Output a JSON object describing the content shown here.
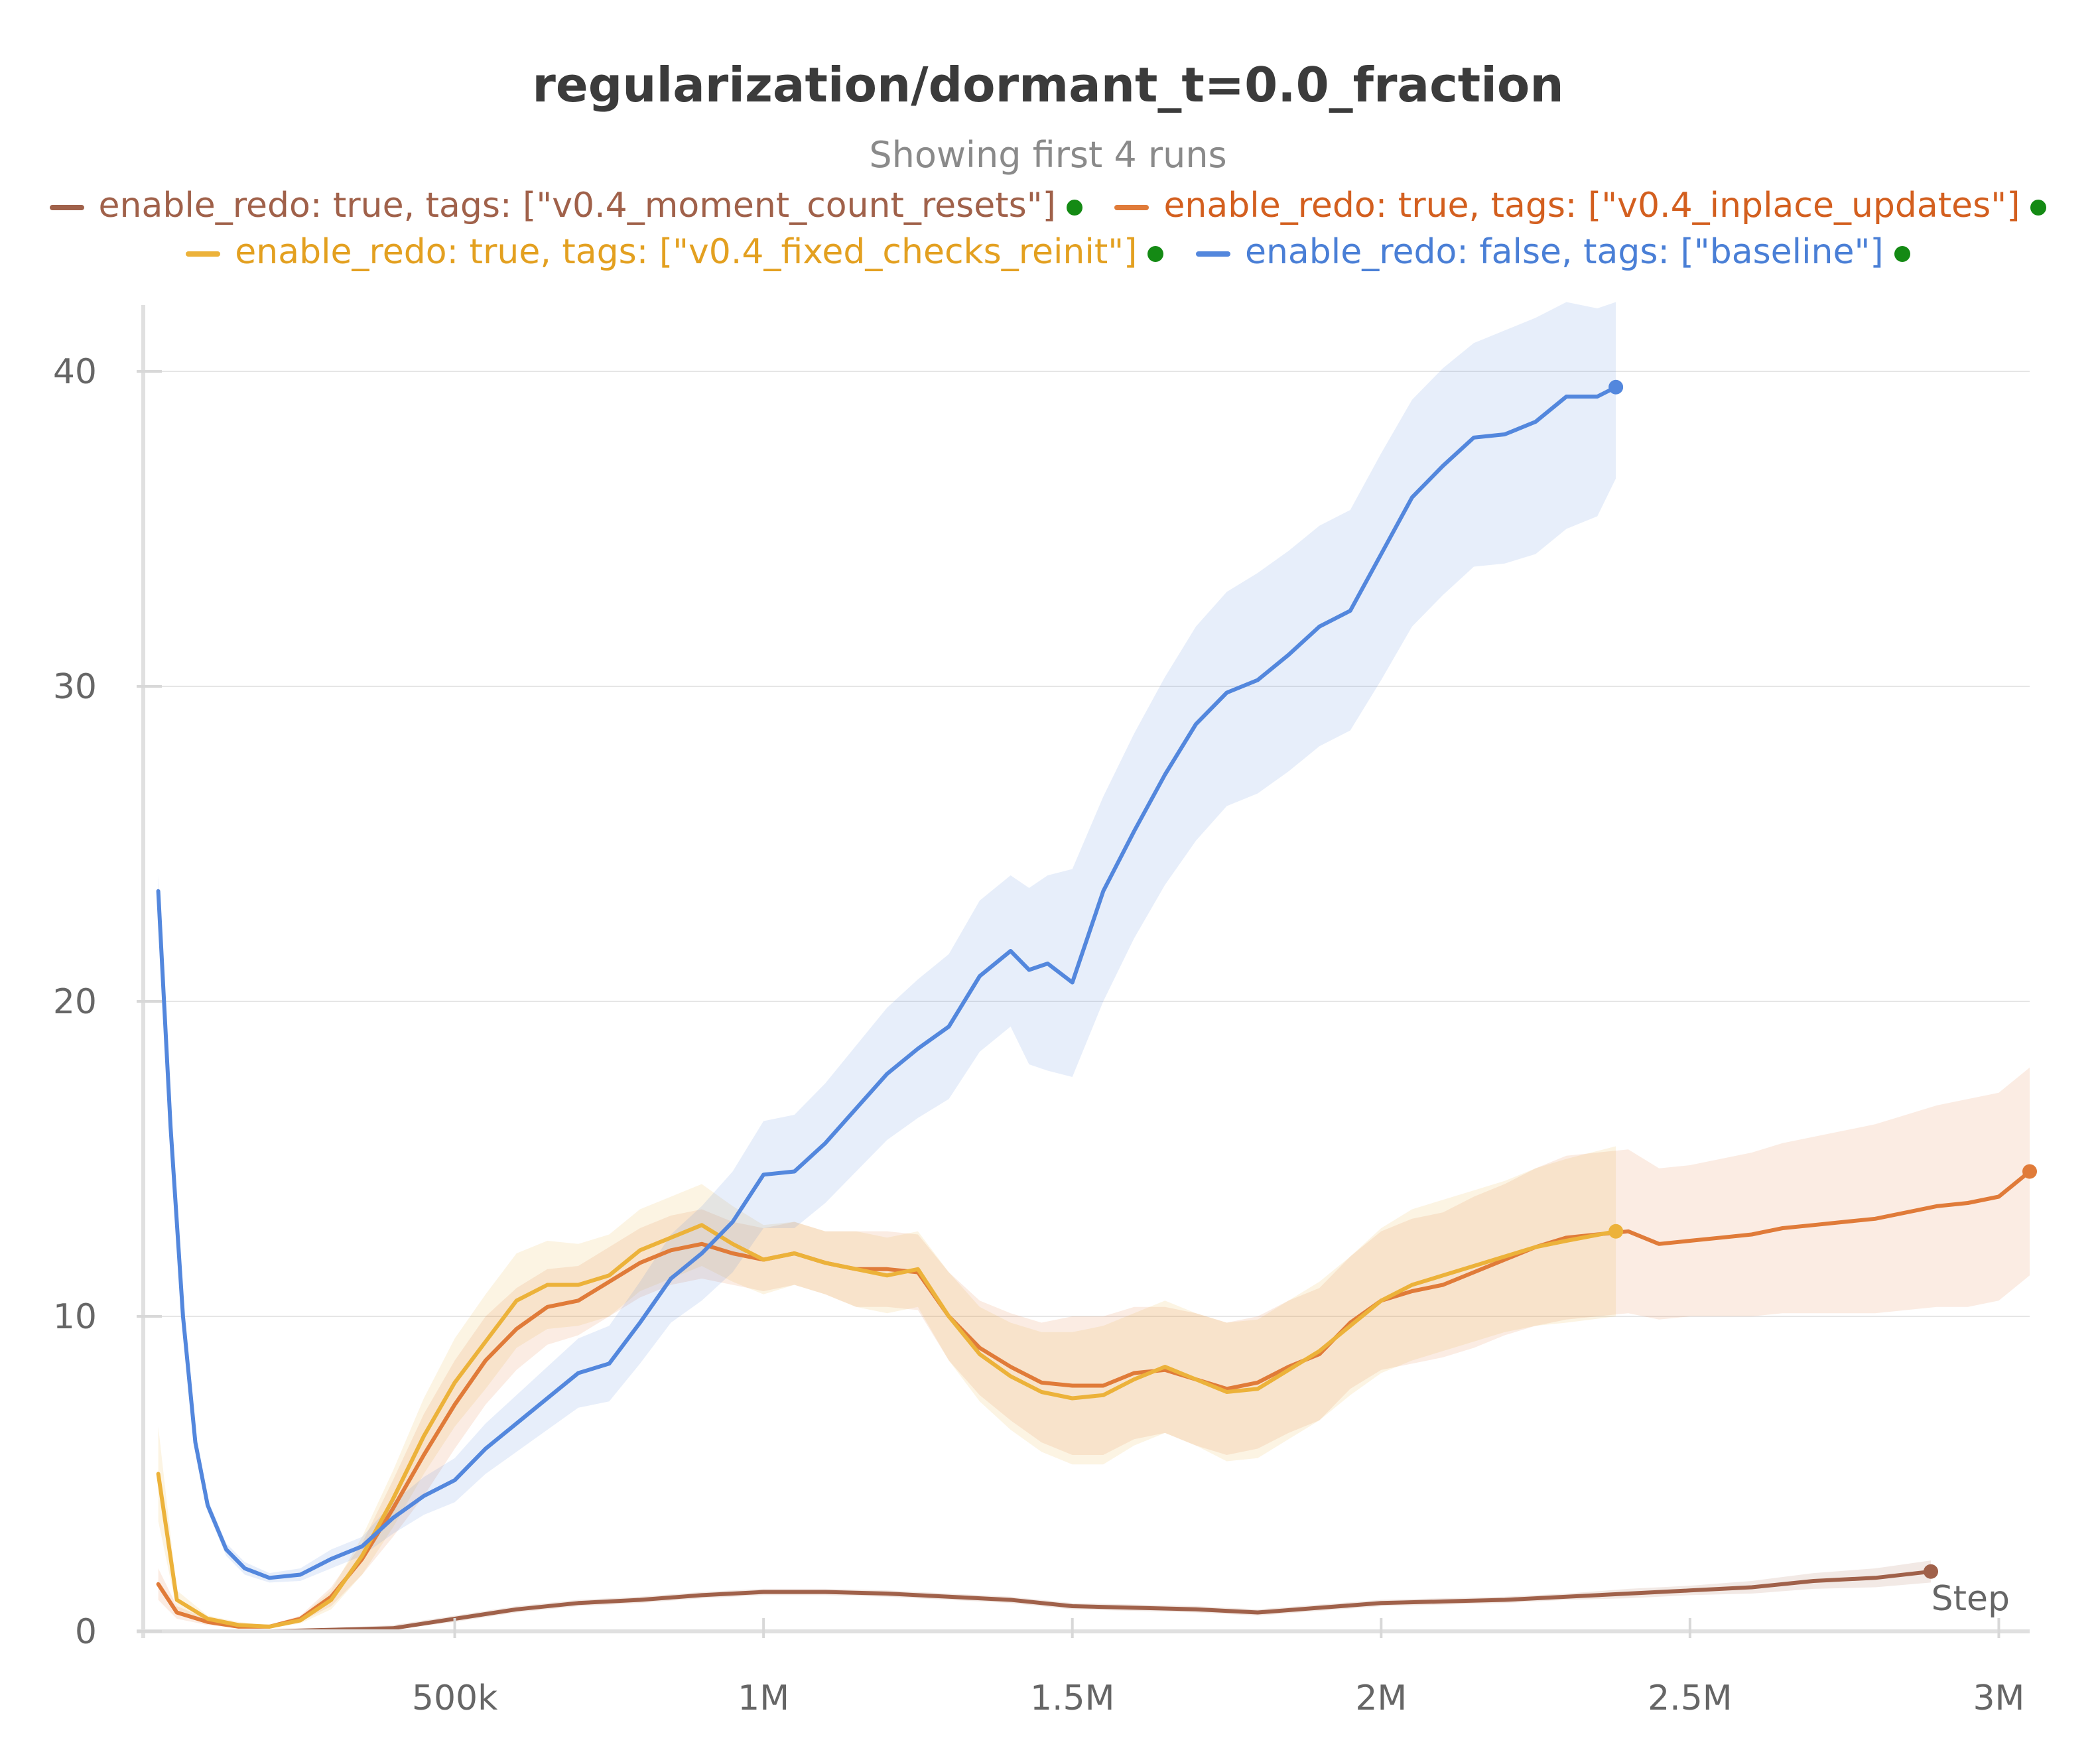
{
  "chart_data": {
    "type": "line",
    "title": "regularization/dormant_t=0.0_fraction",
    "subtitle": "Showing first 4 runs",
    "xlabel": "Step",
    "ylabel": "",
    "xlim": [
      0,
      3050000
    ],
    "ylim": [
      0,
      42
    ],
    "x_ticks": [
      500000,
      1000000,
      1500000,
      2000000,
      2500000,
      3000000
    ],
    "x_tick_labels": [
      "500k",
      "1M",
      "1.5M",
      "2M",
      "2.5M",
      "3M"
    ],
    "y_ticks": [
      0,
      10,
      20,
      30,
      40
    ],
    "y_tick_labels": [
      "0",
      "10",
      "20",
      "30",
      "40"
    ],
    "grid": true,
    "legend_position": "top",
    "series": [
      {
        "name": "enable_redo: true, tags: [\"v0.4_moment_count_resets\"]",
        "color": "#a0614a",
        "x": [
          20000,
          100000,
          200000,
          300000,
          400000,
          500000,
          600000,
          700000,
          800000,
          900000,
          1000000,
          1100000,
          1200000,
          1300000,
          1400000,
          1500000,
          1600000,
          1700000,
          1800000,
          1900000,
          2000000,
          2100000,
          2200000,
          2300000,
          2400000,
          2500000,
          2600000,
          2700000,
          2800000,
          2890000
        ],
        "y": [
          0.0,
          0.0,
          0.0,
          0.05,
          0.1,
          0.4,
          0.7,
          0.9,
          1.0,
          1.15,
          1.25,
          1.25,
          1.2,
          1.1,
          1.0,
          0.8,
          0.75,
          0.7,
          0.6,
          0.75,
          0.9,
          0.95,
          1.0,
          1.1,
          1.2,
          1.3,
          1.4,
          1.6,
          1.7,
          1.9
        ],
        "band": [
          [
            0.0,
            0.0
          ],
          [
            0.0,
            0.0
          ],
          [
            0.0,
            0.0
          ],
          [
            0.0,
            0.1
          ],
          [
            0.05,
            0.2
          ],
          [
            0.3,
            0.5
          ],
          [
            0.6,
            0.8
          ],
          [
            0.8,
            1.0
          ],
          [
            0.9,
            1.1
          ],
          [
            1.05,
            1.25
          ],
          [
            1.15,
            1.35
          ],
          [
            1.15,
            1.35
          ],
          [
            1.1,
            1.3
          ],
          [
            1.0,
            1.2
          ],
          [
            0.9,
            1.1
          ],
          [
            0.7,
            0.9
          ],
          [
            0.65,
            0.85
          ],
          [
            0.6,
            0.8
          ],
          [
            0.5,
            0.7
          ],
          [
            0.65,
            0.85
          ],
          [
            0.8,
            1.0
          ],
          [
            0.85,
            1.05
          ],
          [
            0.9,
            1.1
          ],
          [
            1.0,
            1.2
          ],
          [
            1.05,
            1.35
          ],
          [
            1.15,
            1.45
          ],
          [
            1.2,
            1.6
          ],
          [
            1.35,
            1.85
          ],
          [
            1.4,
            2.0
          ],
          [
            1.55,
            2.25
          ]
        ]
      },
      {
        "name": "enable_redo: true, tags: [\"v0.4_inplace_updates\"]",
        "color": "#e07b39",
        "x": [
          20000,
          50000,
          100000,
          150000,
          200000,
          250000,
          300000,
          350000,
          400000,
          450000,
          500000,
          550000,
          600000,
          650000,
          700000,
          750000,
          800000,
          850000,
          900000,
          950000,
          1000000,
          1050000,
          1100000,
          1150000,
          1200000,
          1250000,
          1300000,
          1350000,
          1400000,
          1450000,
          1500000,
          1550000,
          1600000,
          1650000,
          1700000,
          1750000,
          1800000,
          1850000,
          1900000,
          1950000,
          2000000,
          2050000,
          2100000,
          2150000,
          2200000,
          2250000,
          2300000,
          2350000,
          2400000,
          2450000,
          2500000,
          2550000,
          2600000,
          2650000,
          2700000,
          2750000,
          2800000,
          2850000,
          2900000,
          2950000,
          3000000,
          3050000
        ],
        "y": [
          1.5,
          0.6,
          0.3,
          0.15,
          0.15,
          0.4,
          1.1,
          2.3,
          3.9,
          5.6,
          7.2,
          8.6,
          9.6,
          10.3,
          10.5,
          11.1,
          11.7,
          12.1,
          12.3,
          12.0,
          11.8,
          12.0,
          11.7,
          11.5,
          11.5,
          11.4,
          10.0,
          9.0,
          8.4,
          7.9,
          7.8,
          7.8,
          8.2,
          8.3,
          8.0,
          7.7,
          7.9,
          8.4,
          8.8,
          9.8,
          10.5,
          10.8,
          11.0,
          11.4,
          11.8,
          12.2,
          12.5,
          12.6,
          12.7,
          12.3,
          12.4,
          12.5,
          12.6,
          12.8,
          12.9,
          13.0,
          13.1,
          13.3,
          13.5,
          13.6,
          13.8,
          14.6
        ],
        "band": [
          [
            1.0,
            2.0
          ],
          [
            0.4,
            0.8
          ],
          [
            0.2,
            0.4
          ],
          [
            0.1,
            0.2
          ],
          [
            0.1,
            0.2
          ],
          [
            0.3,
            0.5
          ],
          [
            0.8,
            1.4
          ],
          [
            1.8,
            2.8
          ],
          [
            3.0,
            4.8
          ],
          [
            4.3,
            6.9
          ],
          [
            5.8,
            8.6
          ],
          [
            7.2,
            10.0
          ],
          [
            8.3,
            10.9
          ],
          [
            9.1,
            11.5
          ],
          [
            9.4,
            11.6
          ],
          [
            10.0,
            12.2
          ],
          [
            10.6,
            12.8
          ],
          [
            11.0,
            13.2
          ],
          [
            11.2,
            13.4
          ],
          [
            11.0,
            13.0
          ],
          [
            10.8,
            12.8
          ],
          [
            11.0,
            13.0
          ],
          [
            10.7,
            12.7
          ],
          [
            10.3,
            12.7
          ],
          [
            10.3,
            12.7
          ],
          [
            10.2,
            12.6
          ],
          [
            8.6,
            11.4
          ],
          [
            7.5,
            10.5
          ],
          [
            6.7,
            10.1
          ],
          [
            6.0,
            9.8
          ],
          [
            5.6,
            10.0
          ],
          [
            5.6,
            10.0
          ],
          [
            6.1,
            10.3
          ],
          [
            6.3,
            10.3
          ],
          [
            5.9,
            10.1
          ],
          [
            5.6,
            9.8
          ],
          [
            5.8,
            10.0
          ],
          [
            6.3,
            10.5
          ],
          [
            6.7,
            10.9
          ],
          [
            7.7,
            11.9
          ],
          [
            8.3,
            12.7
          ],
          [
            8.5,
            13.1
          ],
          [
            8.7,
            13.3
          ],
          [
            9.0,
            13.8
          ],
          [
            9.4,
            14.2
          ],
          [
            9.7,
            14.7
          ],
          [
            9.9,
            15.1
          ],
          [
            10.0,
            15.2
          ],
          [
            10.1,
            15.3
          ],
          [
            9.9,
            14.7
          ],
          [
            10.0,
            14.8
          ],
          [
            10.0,
            15.0
          ],
          [
            10.0,
            15.2
          ],
          [
            10.1,
            15.5
          ],
          [
            10.1,
            15.7
          ],
          [
            10.1,
            15.9
          ],
          [
            10.1,
            16.1
          ],
          [
            10.2,
            16.4
          ],
          [
            10.3,
            16.7
          ],
          [
            10.3,
            16.9
          ],
          [
            10.5,
            17.1
          ],
          [
            11.3,
            17.9
          ]
        ]
      },
      {
        "name": "enable_redo: true, tags: [\"v0.4_fixed_checks_reinit\"]",
        "color": "#ecb23a",
        "x": [
          20000,
          50000,
          100000,
          150000,
          200000,
          250000,
          300000,
          350000,
          400000,
          450000,
          500000,
          550000,
          600000,
          650000,
          700000,
          750000,
          800000,
          850000,
          900000,
          950000,
          1000000,
          1050000,
          1100000,
          1150000,
          1200000,
          1250000,
          1300000,
          1350000,
          1400000,
          1450000,
          1500000,
          1550000,
          1600000,
          1650000,
          1700000,
          1750000,
          1800000,
          1850000,
          1900000,
          1950000,
          2000000,
          2050000,
          2100000,
          2150000,
          2200000,
          2250000,
          2300000,
          2380000
        ],
        "y": [
          5.0,
          1.0,
          0.4,
          0.2,
          0.15,
          0.35,
          1.0,
          2.4,
          4.2,
          6.2,
          7.9,
          9.2,
          10.5,
          11.0,
          11.0,
          11.3,
          12.1,
          12.5,
          12.9,
          12.3,
          11.8,
          12.0,
          11.7,
          11.5,
          11.3,
          11.5,
          10.0,
          8.8,
          8.1,
          7.6,
          7.4,
          7.5,
          8.0,
          8.4,
          8.0,
          7.6,
          7.7,
          8.3,
          8.9,
          9.7,
          10.5,
          11.0,
          11.3,
          11.6,
          11.9,
          12.2,
          12.4,
          12.7
        ],
        "band": [
          [
            3.5,
            6.5
          ],
          [
            0.7,
            1.3
          ],
          [
            0.3,
            0.5
          ],
          [
            0.1,
            0.3
          ],
          [
            0.1,
            0.2
          ],
          [
            0.25,
            0.45
          ],
          [
            0.7,
            1.3
          ],
          [
            1.8,
            3.0
          ],
          [
            3.3,
            5.1
          ],
          [
            5.0,
            7.4
          ],
          [
            6.5,
            9.3
          ],
          [
            7.7,
            10.7
          ],
          [
            9.0,
            12.0
          ],
          [
            9.6,
            12.4
          ],
          [
            9.7,
            12.3
          ],
          [
            10.0,
            12.6
          ],
          [
            10.8,
            13.4
          ],
          [
            11.2,
            13.8
          ],
          [
            11.6,
            14.2
          ],
          [
            11.1,
            13.5
          ],
          [
            10.7,
            12.9
          ],
          [
            11.0,
            13.0
          ],
          [
            10.7,
            12.7
          ],
          [
            10.3,
            12.7
          ],
          [
            10.1,
            12.5
          ],
          [
            10.3,
            12.7
          ],
          [
            8.6,
            11.4
          ],
          [
            7.3,
            10.3
          ],
          [
            6.4,
            9.8
          ],
          [
            5.7,
            9.5
          ],
          [
            5.3,
            9.5
          ],
          [
            5.3,
            9.7
          ],
          [
            5.9,
            10.1
          ],
          [
            6.3,
            10.5
          ],
          [
            5.9,
            10.1
          ],
          [
            5.4,
            9.8
          ],
          [
            5.5,
            9.9
          ],
          [
            6.1,
            10.5
          ],
          [
            6.7,
            11.1
          ],
          [
            7.5,
            11.9
          ],
          [
            8.2,
            12.8
          ],
          [
            8.6,
            13.4
          ],
          [
            8.9,
            13.7
          ],
          [
            9.2,
            14.0
          ],
          [
            9.5,
            14.3
          ],
          [
            9.7,
            14.7
          ],
          [
            9.8,
            15.0
          ],
          [
            10.0,
            15.4
          ]
        ]
      },
      {
        "name": "enable_redo: false, tags: [\"baseline\"]",
        "color": "#5387dd",
        "x": [
          20000,
          40000,
          60000,
          80000,
          100000,
          130000,
          160000,
          200000,
          250000,
          300000,
          350000,
          400000,
          450000,
          500000,
          550000,
          600000,
          650000,
          700000,
          750000,
          800000,
          850000,
          900000,
          950000,
          1000000,
          1050000,
          1100000,
          1150000,
          1200000,
          1250000,
          1300000,
          1350000,
          1400000,
          1430000,
          1460000,
          1500000,
          1550000,
          1600000,
          1650000,
          1700000,
          1750000,
          1800000,
          1850000,
          1900000,
          1950000,
          2000000,
          2050000,
          2100000,
          2150000,
          2200000,
          2250000,
          2300000,
          2350000,
          2380000
        ],
        "y": [
          23.5,
          16.0,
          10.0,
          6.0,
          4.0,
          2.6,
          2.0,
          1.7,
          1.8,
          2.3,
          2.7,
          3.6,
          4.3,
          4.8,
          5.8,
          6.6,
          7.4,
          8.2,
          8.5,
          9.8,
          11.2,
          12.0,
          13.0,
          14.5,
          14.6,
          15.5,
          16.6,
          17.7,
          18.5,
          19.2,
          20.8,
          21.6,
          21.0,
          21.2,
          20.6,
          23.5,
          25.4,
          27.2,
          28.8,
          29.8,
          30.2,
          31.0,
          31.9,
          32.4,
          34.2,
          36.0,
          37.0,
          37.9,
          38.0,
          38.4,
          39.2,
          39.2,
          39.5
        ],
        "band": [
          [
            23.0,
            24.0
          ],
          [
            15.5,
            16.5
          ],
          [
            9.6,
            10.4
          ],
          [
            5.7,
            6.3
          ],
          [
            3.8,
            4.2
          ],
          [
            2.4,
            2.8
          ],
          [
            1.8,
            2.2
          ],
          [
            1.55,
            1.85
          ],
          [
            1.6,
            2.0
          ],
          [
            2.0,
            2.6
          ],
          [
            2.4,
            3.0
          ],
          [
            3.1,
            4.1
          ],
          [
            3.7,
            4.9
          ],
          [
            4.1,
            5.5
          ],
          [
            5.0,
            6.6
          ],
          [
            5.7,
            7.5
          ],
          [
            6.4,
            8.4
          ],
          [
            7.1,
            9.3
          ],
          [
            7.3,
            9.7
          ],
          [
            8.5,
            11.1
          ],
          [
            9.8,
            12.6
          ],
          [
            10.5,
            13.5
          ],
          [
            11.4,
            14.6
          ],
          [
            12.8,
            16.2
          ],
          [
            12.8,
            16.4
          ],
          [
            13.6,
            17.4
          ],
          [
            14.6,
            18.6
          ],
          [
            15.6,
            19.8
          ],
          [
            16.3,
            20.7
          ],
          [
            16.9,
            21.5
          ],
          [
            18.4,
            23.2
          ],
          [
            19.2,
            24.0
          ],
          [
            18.0,
            23.6
          ],
          [
            17.8,
            24.0
          ],
          [
            17.6,
            24.2
          ],
          [
            20.0,
            26.5
          ],
          [
            22.0,
            28.5
          ],
          [
            23.7,
            30.3
          ],
          [
            25.1,
            31.9
          ],
          [
            26.2,
            33.0
          ],
          [
            26.6,
            33.6
          ],
          [
            27.3,
            34.3
          ],
          [
            28.1,
            35.1
          ],
          [
            28.6,
            35.6
          ],
          [
            30.2,
            37.4
          ],
          [
            31.9,
            39.1
          ],
          [
            32.9,
            40.1
          ],
          [
            33.8,
            40.9
          ],
          [
            33.9,
            41.3
          ],
          [
            34.2,
            41.7
          ],
          [
            35.0,
            42.2
          ],
          [
            35.4,
            42.0
          ],
          [
            36.6,
            42.2
          ]
        ]
      }
    ]
  },
  "legend": {
    "row1": [
      {
        "label": "enable_redo: true, tags: [\"v0.4_moment_count_resets\"]",
        "color": "#a0614a"
      },
      {
        "label": "enable_redo: true, tags: [\"v0.4_inplace_updates\"]",
        "color": "#e07b39"
      }
    ],
    "row2": [
      {
        "label": "enable_redo: true, tags: [\"v0.4_fixed_checks_reinit\"]",
        "color": "#ecb23a"
      },
      {
        "label": "enable_redo: false, tags: [\"baseline\"]",
        "color": "#5387dd"
      }
    ]
  }
}
